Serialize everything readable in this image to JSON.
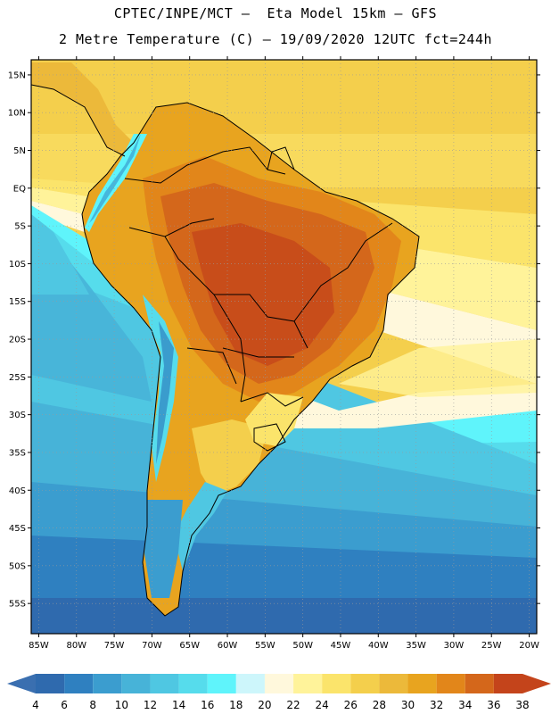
{
  "header": {
    "line1": "CPTEC/INPE/MCT –  Eta Model 15km – GFS",
    "line2": "2 Metre Temperature (C) – 19/09/2020 12UTC fct=244h"
  },
  "map": {
    "lon_range": [
      -86,
      -19
    ],
    "lat_range": [
      -59,
      17
    ],
    "lon_ticks": [
      {
        "value": -85,
        "label": "85W"
      },
      {
        "value": -80,
        "label": "80W"
      },
      {
        "value": -75,
        "label": "75W"
      },
      {
        "value": -70,
        "label": "70W"
      },
      {
        "value": -65,
        "label": "65W"
      },
      {
        "value": -60,
        "label": "60W"
      },
      {
        "value": -55,
        "label": "55W"
      },
      {
        "value": -50,
        "label": "50W"
      },
      {
        "value": -45,
        "label": "45W"
      },
      {
        "value": -40,
        "label": "40W"
      },
      {
        "value": -35,
        "label": "35W"
      },
      {
        "value": -30,
        "label": "30W"
      },
      {
        "value": -25,
        "label": "25W"
      },
      {
        "value": -20,
        "label": "20W"
      }
    ],
    "lat_ticks": [
      {
        "value": 15,
        "label": "15N"
      },
      {
        "value": 10,
        "label": "10N"
      },
      {
        "value": 5,
        "label": "5N"
      },
      {
        "value": 0,
        "label": "EQ"
      },
      {
        "value": -5,
        "label": "5S"
      },
      {
        "value": -10,
        "label": "10S"
      },
      {
        "value": -15,
        "label": "15S"
      },
      {
        "value": -20,
        "label": "20S"
      },
      {
        "value": -25,
        "label": "25S"
      },
      {
        "value": -30,
        "label": "30S"
      },
      {
        "value": -35,
        "label": "35S"
      },
      {
        "value": -40,
        "label": "40S"
      },
      {
        "value": -45,
        "label": "45S"
      },
      {
        "value": -50,
        "label": "50S"
      },
      {
        "value": -55,
        "label": "55S"
      }
    ],
    "grid": "dotted"
  },
  "colorbar": {
    "labels": [
      "4",
      "6",
      "8",
      "10",
      "12",
      "14",
      "16",
      "18",
      "20",
      "22",
      "24",
      "26",
      "28",
      "30",
      "32",
      "34",
      "36",
      "38"
    ],
    "low_color": "#3a6fb0",
    "high_color": "#c4441b",
    "colors": [
      "#2f6aae",
      "#2f80c0",
      "#3b9dcf",
      "#47b3d8",
      "#4fc7e2",
      "#56dcec",
      "#5ff4fb",
      "#cdf6fb",
      "#fff8dc",
      "#fff39a",
      "#fbe46b",
      "#f4cf4c",
      "#ecb93a",
      "#e8a41f",
      "#e2861a",
      "#d4671b",
      "#c4441b"
    ]
  }
}
